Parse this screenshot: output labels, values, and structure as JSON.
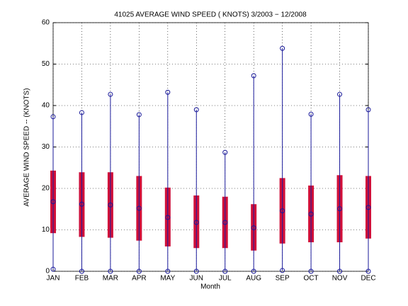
{
  "chart_data": {
    "type": "range-box",
    "title": "41025  AVERAGE WIND SPEED ( KNOTS) 3/2003 − 12/2008",
    "x_label": "Month",
    "y_label": "AVERAGE WIND SPEED -- (KNOTS)",
    "categories": [
      "JAN",
      "FEB",
      "MAR",
      "APR",
      "MAY",
      "JUN",
      "JUL",
      "AUG",
      "SEP",
      "OCT",
      "NOV",
      "DEC"
    ],
    "max": [
      37.3,
      38.3,
      42.7,
      37.8,
      43.2,
      39.0,
      28.7,
      47.2,
      53.8,
      37.9,
      42.7,
      39.0
    ],
    "min": [
      0.5,
      0,
      0,
      0,
      0,
      0,
      0,
      0,
      0.2,
      0,
      0,
      0
    ],
    "mean": [
      16.8,
      16.2,
      16.0,
      15.2,
      13.0,
      11.8,
      11.8,
      10.5,
      14.6,
      13.8,
      15.1,
      15.4
    ],
    "upper": [
      24.3,
      23.9,
      23.9,
      23.0,
      20.2,
      18.3,
      18.0,
      16.2,
      22.5,
      20.7,
      23.2,
      23.0
    ],
    "lower": [
      9.2,
      8.3,
      8.1,
      7.4,
      6.0,
      5.6,
      5.6,
      5.0,
      6.7,
      7.0,
      7.0,
      7.9
    ],
    "line_color": "#1a1a9a",
    "bar_color": "#d0103a",
    "ylim": [
      0,
      60
    ],
    "yticks": [
      0,
      10,
      20,
      30,
      40,
      50,
      60
    ],
    "grid": true
  }
}
